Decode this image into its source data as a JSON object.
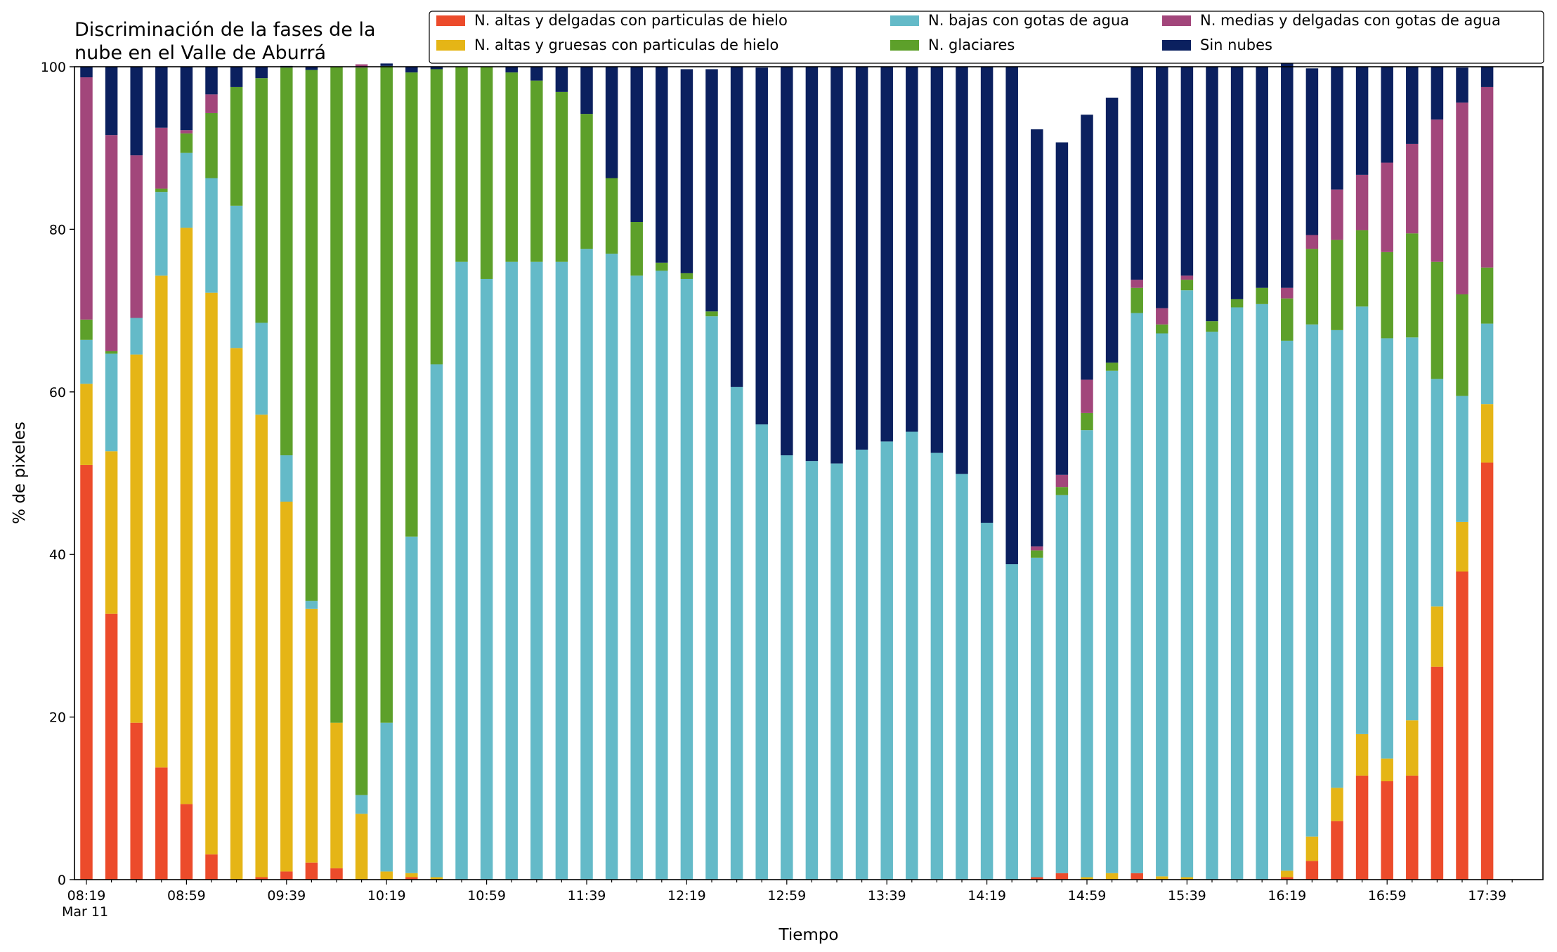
{
  "chart_data": {
    "type": "bar",
    "stacked": true,
    "title_lines": [
      "Discriminación de la fases de la",
      "nube en el Valle de Aburrá"
    ],
    "xlabel": "Tiempo",
    "ylabel": "% de pixeles",
    "ylim": [
      0,
      100
    ],
    "yticks": [
      0,
      20,
      40,
      60,
      80,
      100
    ],
    "x_tick_labels": [
      "08:19",
      "08:59",
      "09:39",
      "10:19",
      "10:59",
      "11:39",
      "12:19",
      "12:59",
      "13:39",
      "14:19",
      "14:59",
      "15:39",
      "16:19",
      "16:59",
      "17:39"
    ],
    "x_date_label": "Mar 11",
    "bar_interval_minutes": 10,
    "first_bar_time": "08:19",
    "legend_position": "top-right",
    "grid": false,
    "series": [
      {
        "name": "N. altas y delgadas con particulas de hielo",
        "color": "#ec4b2b",
        "values": [
          51,
          32.7,
          19.3,
          13.8,
          9.3,
          3.1,
          0,
          0.3,
          1,
          2.1,
          1.4,
          0,
          0,
          0.3,
          0,
          0,
          0,
          0,
          0,
          0,
          0,
          0,
          0,
          0,
          0,
          0,
          0,
          0,
          0,
          0,
          0,
          0,
          0,
          0,
          0,
          0,
          0,
          0,
          0.3,
          0.8,
          0,
          0,
          0.8,
          0,
          0,
          0,
          0,
          0,
          0.3,
          2.3,
          7.2,
          12.8,
          12.1,
          12.8,
          26.2,
          37.9,
          51.3
        ]
      },
      {
        "name": "N. altas y gruesas con particulas de hielo",
        "color": "#e5b516",
        "values": [
          10,
          20,
          45.3,
          60.5,
          70.9,
          69.1,
          65.4,
          56.9,
          45.5,
          31.2,
          17.9,
          8.1,
          1,
          0.5,
          0.3,
          0,
          0,
          0,
          0,
          0,
          0,
          0,
          0,
          0,
          0,
          0,
          0,
          0,
          0,
          0,
          0,
          0,
          0,
          0,
          0,
          0,
          0,
          0,
          0,
          0,
          0.3,
          0.8,
          0,
          0.4,
          0.3,
          0,
          0,
          0,
          0.8,
          3,
          4.1,
          5.1,
          2.8,
          6.8,
          7.4,
          6.1,
          7.2
        ]
      },
      {
        "name": "N. bajas con gotas de agua",
        "color": "#64bac8",
        "values": [
          5.4,
          12,
          4.5,
          10.3,
          9.2,
          14.1,
          17.5,
          11.3,
          5.7,
          1,
          0,
          2.3,
          18.3,
          41.4,
          63.1,
          76,
          73.9,
          76,
          76,
          76,
          77.6,
          77,
          74.3,
          74.9,
          73.9,
          69.3,
          60.6,
          56,
          52.2,
          51.5,
          51.2,
          52.9,
          53.9,
          55.1,
          52.5,
          49.9,
          43.9,
          38.8,
          39.3,
          46.5,
          55,
          61.8,
          68.9,
          66.8,
          72.2,
          67.4,
          70.4,
          70.8,
          65.2,
          63,
          56.3,
          52.6,
          51.7,
          47.1,
          28,
          15.5,
          9.9
        ]
      },
      {
        "name": "N. glaciares",
        "color": "#5da02a",
        "values": [
          2.5,
          0.3,
          0,
          0.4,
          2.4,
          8,
          14.6,
          30.1,
          47.7,
          65.3,
          80.7,
          89.5,
          80.8,
          57.1,
          36.3,
          24,
          26.1,
          23.3,
          22.3,
          20.9,
          16.6,
          9.3,
          6.6,
          1,
          0.7,
          0.6,
          0,
          0,
          0,
          0,
          0,
          0,
          0,
          0,
          0,
          0,
          0,
          0,
          0.9,
          1,
          2.1,
          1,
          3.1,
          1.1,
          1.3,
          1.3,
          1,
          2,
          5.2,
          9.3,
          11.1,
          9.4,
          10.6,
          12.8,
          14.4,
          12.5,
          6.9
        ]
      },
      {
        "name": "N. medias y delgadas con gotas de agua",
        "color": "#a2467b",
        "values": [
          29.8,
          26.6,
          20,
          7.5,
          0.4,
          2.3,
          0,
          0,
          0,
          0,
          0,
          0.4,
          0,
          0,
          0,
          0,
          0,
          0,
          0,
          0,
          0,
          0,
          0,
          0,
          0,
          0,
          0,
          0,
          0,
          0,
          0,
          0,
          0,
          0,
          0,
          0,
          0,
          0,
          0.5,
          1.5,
          4.1,
          0,
          1,
          2,
          0.5,
          0,
          0,
          0,
          1.3,
          1.7,
          6.2,
          6.8,
          11,
          11,
          17.5,
          23.6,
          22.2
        ]
      },
      {
        "name": "Sin nubes",
        "color": "#0b205f",
        "values": [
          1.3,
          8.4,
          10.9,
          7.5,
          7.8,
          3.4,
          2.5,
          1.4,
          0.2,
          0.4,
          0,
          0,
          0.3,
          0.7,
          0.3,
          0,
          0,
          0.7,
          1.7,
          3.1,
          5.8,
          13.7,
          19.1,
          24.1,
          25.1,
          29.8,
          39.4,
          43.9,
          47.8,
          48.5,
          48.8,
          47.1,
          46.1,
          44.9,
          47.5,
          50.1,
          56.1,
          61.2,
          51.3,
          40.9,
          32.6,
          32.6,
          26.2,
          29.7,
          25.7,
          31.3,
          28.6,
          27.2,
          28.6,
          20.5,
          15.1,
          13.3,
          11.8,
          9.5,
          6.5,
          4.3,
          2.5
        ]
      }
    ]
  }
}
